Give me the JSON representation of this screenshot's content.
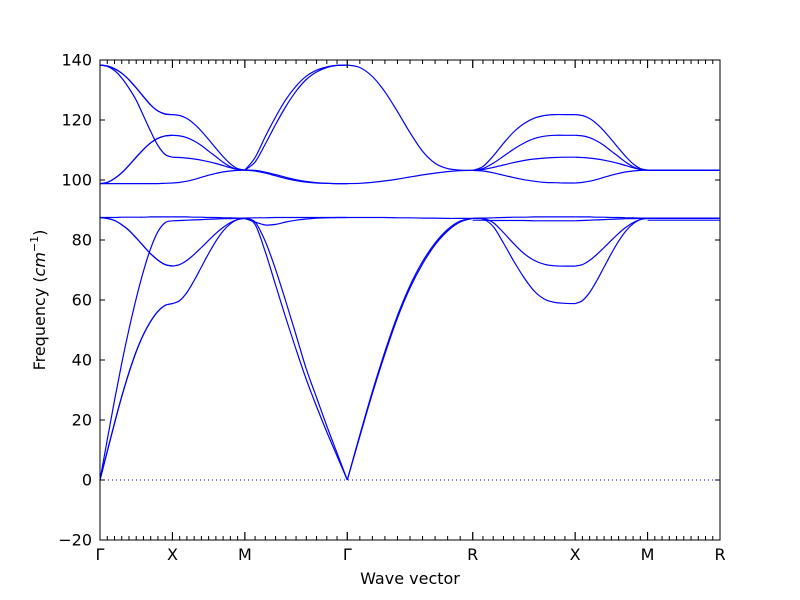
{
  "chart_data": {
    "type": "line",
    "xlabel": "Wave vector",
    "ylabel_main": "Frequency (",
    "ylabel_unit": "cm",
    "ylabel_exp": "−1",
    "ylabel_close": ")",
    "ylim": [
      -20,
      140
    ],
    "yticks": [
      -20,
      0,
      20,
      40,
      60,
      80,
      100,
      120,
      140
    ],
    "ytick_labels": [
      "−20",
      "0",
      "20",
      "40",
      "60",
      "80",
      "100",
      "120",
      "140"
    ],
    "path_positions": [
      0,
      0.5,
      1.0,
      1.7071,
      2.5731,
      3.2802,
      3.7802,
      4.2802
    ],
    "path_labels": [
      "Γ",
      "X",
      "M",
      "Γ",
      "R",
      "X",
      "M",
      "R"
    ],
    "line_color": "#0000ff",
    "zero_line_color": "#0000ff",
    "segments": [
      {
        "name": "Γ-X",
        "x": [
          0,
          0.05,
          0.1,
          0.15,
          0.2,
          0.25,
          0.3,
          0.35,
          0.4,
          0.45,
          0.5
        ],
        "bands": [
          [
            0,
            9.5,
            18.9,
            27.8,
            35.8,
            42.8,
            48.5,
            52.9,
            56.2,
            58.2,
            58.8
          ],
          [
            0,
            9.5,
            18.9,
            27.8,
            35.8,
            42.8,
            48.5,
            52.9,
            56.2,
            58.2,
            58.8
          ],
          [
            0,
            13.4,
            26.5,
            38.9,
            50.2,
            60.5,
            69.6,
            77.2,
            82.8,
            85.8,
            86.4
          ],
          [
            87.5,
            87.2,
            86.5,
            85.1,
            83.2,
            80.7,
            78.0,
            75.4,
            73.3,
            71.8,
            71.3
          ],
          [
            87.5,
            87.2,
            86.5,
            85.1,
            83.2,
            80.7,
            78.0,
            75.4,
            73.3,
            71.8,
            71.3
          ],
          [
            87.5,
            87.5,
            87.5,
            87.6,
            87.6,
            87.6,
            87.6,
            87.7,
            87.7,
            87.7,
            87.7
          ],
          [
            98.8,
            98.8,
            98.8,
            98.8,
            98.8,
            98.8,
            98.8,
            98.8,
            98.8,
            98.9,
            99.0
          ],
          [
            98.8,
            99.2,
            100.5,
            102.4,
            104.9,
            107.6,
            110.2,
            112.4,
            113.9,
            114.7,
            114.9
          ],
          [
            98.8,
            99.2,
            100.5,
            102.4,
            104.9,
            107.6,
            110.2,
            112.4,
            113.9,
            114.7,
            114.9
          ],
          [
            138.3,
            137.9,
            136.5,
            134.0,
            130.6,
            126.6,
            121.4,
            116.2,
            111.5,
            108.5,
            107.6
          ],
          [
            138.3,
            138.0,
            137.1,
            135.6,
            133.4,
            130.7,
            127.8,
            125.0,
            123.0,
            122.0,
            121.8
          ],
          [
            138.3,
            138.0,
            137.1,
            135.6,
            133.4,
            130.7,
            127.8,
            125.0,
            123.0,
            122.0,
            121.8
          ]
        ]
      },
      {
        "name": "X-M",
        "x": [
          0.5,
          0.55,
          0.6,
          0.65,
          0.7,
          0.75,
          0.8,
          0.85,
          0.9,
          0.95,
          1.0
        ],
        "bands": [
          [
            58.8,
            59.8,
            62.5,
            66.5,
            71.0,
            75.5,
            79.6,
            83.0,
            85.4,
            86.8,
            87.2
          ],
          [
            71.3,
            71.8,
            73.2,
            75.2,
            77.5,
            79.9,
            82.2,
            84.2,
            85.8,
            86.8,
            87.2
          ],
          [
            86.4,
            86.5,
            86.6,
            86.7,
            86.8,
            86.9,
            87.0,
            87.1,
            87.1,
            87.2,
            87.2
          ],
          [
            87.7,
            87.7,
            87.7,
            87.6,
            87.6,
            87.5,
            87.5,
            87.4,
            87.4,
            87.3,
            87.3
          ],
          [
            99.0,
            99.2,
            99.6,
            100.2,
            100.9,
            101.6,
            102.2,
            102.7,
            103.0,
            103.2,
            103.3
          ],
          [
            114.9,
            114.7,
            114.1,
            113.0,
            111.5,
            109.6,
            107.8,
            105.9,
            104.4,
            103.5,
            103.3
          ],
          [
            107.6,
            107.5,
            107.3,
            107.0,
            106.6,
            106.1,
            105.5,
            104.8,
            104.1,
            103.5,
            103.3
          ],
          [
            121.8,
            121.5,
            120.5,
            118.7,
            116.3,
            113.5,
            110.6,
            107.8,
            105.4,
            103.8,
            103.3
          ]
        ]
      },
      {
        "name": "M-Γ",
        "x": [
          1.0,
          1.0707,
          1.1414,
          1.2121,
          1.2828,
          1.3536,
          1.4243,
          1.495,
          1.5657,
          1.6364,
          1.7071
        ],
        "bands": [
          [
            87.2,
            86.0,
            79.5,
            70.2,
            59.5,
            48.3,
            37.0,
            27.5,
            18.0,
            9.0,
            0
          ],
          [
            87.2,
            85.2,
            76.0,
            65.0,
            54.0,
            43.5,
            33.5,
            24.5,
            16.0,
            8.0,
            0
          ],
          [
            87.2,
            86.0,
            85.0,
            85.2,
            86.0,
            86.6,
            87.0,
            87.3,
            87.4,
            87.5,
            87.5
          ],
          [
            87.3,
            87.4,
            87.4,
            87.5,
            87.5,
            87.5,
            87.5,
            87.5,
            87.5,
            87.5,
            87.5
          ],
          [
            103.3,
            103.2,
            102.6,
            101.8,
            100.9,
            100.1,
            99.5,
            99.1,
            98.9,
            98.8,
            98.8
          ],
          [
            103.3,
            103.0,
            102.3,
            101.4,
            100.5,
            99.8,
            99.3,
            99.0,
            98.9,
            98.8,
            98.8
          ],
          [
            103.3,
            106.0,
            112.0,
            118.5,
            124.5,
            129.6,
            133.5,
            136.0,
            137.5,
            138.2,
            138.3
          ],
          [
            103.3,
            107.5,
            114.5,
            121.0,
            126.8,
            131.3,
            134.6,
            136.6,
            137.7,
            138.2,
            138.3
          ]
        ]
      },
      {
        "name": "Γ-R",
        "x": [
          1.7071,
          1.7937,
          1.8803,
          1.9669,
          2.0535,
          2.1401,
          2.2267,
          2.3133,
          2.3999,
          2.4865,
          2.5731
        ],
        "bands": [
          [
            0,
            14.5,
            28.8,
            42.0,
            54.0,
            64.0,
            72.0,
            78.4,
            83.0,
            86.0,
            87.2
          ],
          [
            0,
            15.0,
            29.5,
            42.8,
            54.8,
            64.8,
            72.8,
            79.0,
            83.5,
            86.3,
            87.2
          ],
          [
            87.5,
            87.5,
            87.5,
            87.5,
            87.4,
            87.4,
            87.3,
            87.3,
            87.2,
            87.2,
            87.2
          ],
          [
            98.8,
            98.9,
            99.2,
            99.7,
            100.3,
            101.0,
            101.7,
            102.3,
            102.8,
            103.1,
            103.2
          ],
          [
            138.3,
            137.5,
            134.5,
            129.4,
            122.8,
            115.8,
            109.6,
            105.6,
            103.8,
            103.3,
            103.2
          ]
        ]
      },
      {
        "name": "R-X",
        "x": [
          2.5731,
          2.6438,
          2.7145,
          2.7852,
          2.8559,
          2.9267,
          2.9974,
          3.0681,
          3.1388,
          3.2095,
          3.2802
        ],
        "bands": [
          [
            87.2,
            87.0,
            84.5,
            79.0,
            73.0,
            67.5,
            63.0,
            60.3,
            59.2,
            58.9,
            58.8
          ],
          [
            87.2,
            87.2,
            85.8,
            82.5,
            78.8,
            75.5,
            73.2,
            71.9,
            71.4,
            71.3,
            71.3
          ],
          [
            86.6,
            86.6,
            86.5,
            86.5,
            86.5,
            86.5,
            86.4,
            86.4,
            86.4,
            86.4,
            86.4
          ],
          [
            87.2,
            87.3,
            87.4,
            87.5,
            87.6,
            87.6,
            87.7,
            87.7,
            87.7,
            87.7,
            87.7
          ],
          [
            103.2,
            103.0,
            102.4,
            101.6,
            100.8,
            100.1,
            99.6,
            99.2,
            99.1,
            99.0,
            99.0
          ],
          [
            103.2,
            103.5,
            104.2,
            105.0,
            105.8,
            106.5,
            107.0,
            107.3,
            107.5,
            107.6,
            107.6
          ],
          [
            103.2,
            103.8,
            105.6,
            107.9,
            110.3,
            112.3,
            113.8,
            114.6,
            114.9,
            114.9,
            114.9
          ],
          [
            103.2,
            104.5,
            108.0,
            112.2,
            116.0,
            118.8,
            120.6,
            121.5,
            121.8,
            121.8,
            121.8
          ]
        ]
      },
      {
        "name": "X-M",
        "x": [
          3.2802,
          3.3302,
          3.3802,
          3.4302,
          3.4802,
          3.5302,
          3.5802,
          3.6302,
          3.6802,
          3.7302,
          3.7802
        ],
        "bands": [
          [
            58.8,
            59.8,
            62.5,
            66.5,
            71.0,
            75.5,
            79.6,
            83.0,
            85.4,
            86.8,
            87.2
          ],
          [
            71.3,
            71.8,
            73.2,
            75.2,
            77.5,
            79.9,
            82.2,
            84.2,
            85.8,
            86.8,
            87.2
          ],
          [
            86.4,
            86.5,
            86.6,
            86.7,
            86.8,
            86.9,
            87.0,
            87.1,
            87.1,
            87.2,
            87.2
          ],
          [
            87.7,
            87.7,
            87.7,
            87.6,
            87.6,
            87.5,
            87.5,
            87.4,
            87.4,
            87.3,
            87.3
          ],
          [
            99.0,
            99.2,
            99.6,
            100.2,
            100.9,
            101.6,
            102.2,
            102.7,
            103.0,
            103.2,
            103.3
          ],
          [
            114.9,
            114.7,
            114.1,
            113.0,
            111.5,
            109.6,
            107.8,
            105.9,
            104.4,
            103.5,
            103.3
          ],
          [
            107.6,
            107.5,
            107.3,
            107.0,
            106.6,
            106.1,
            105.5,
            104.8,
            104.1,
            103.5,
            103.3
          ],
          [
            121.8,
            121.5,
            120.5,
            118.7,
            116.3,
            113.5,
            110.6,
            107.8,
            105.4,
            103.8,
            103.3
          ]
        ]
      },
      {
        "name": "M-R",
        "x": [
          3.7802,
          4.2802
        ],
        "bands": [
          [
            87.2,
            87.2
          ],
          [
            87.3,
            87.3
          ],
          [
            86.6,
            86.6
          ],
          [
            103.3,
            103.3
          ],
          [
            103.2,
            103.2
          ]
        ]
      }
    ]
  }
}
